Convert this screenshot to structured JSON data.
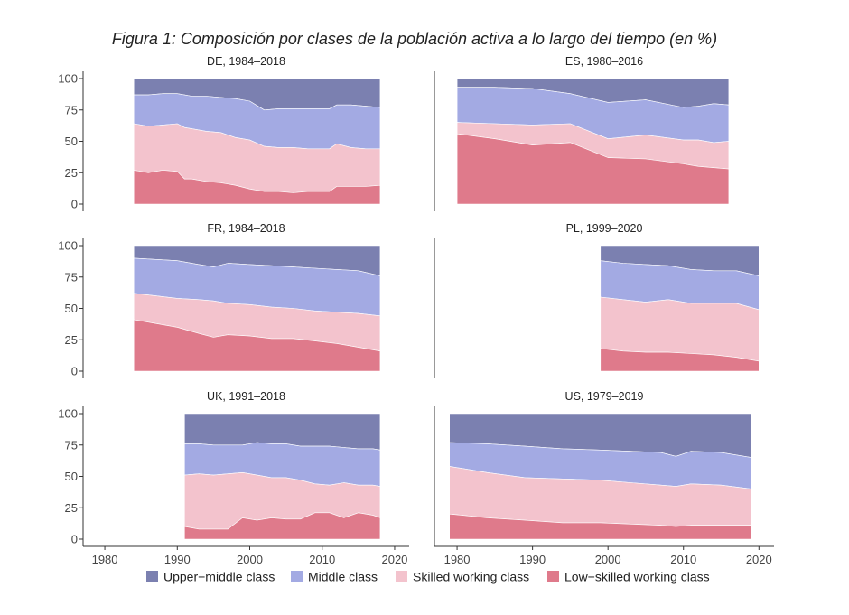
{
  "chart_data": {
    "type": "area",
    "stacked": true,
    "title": "Figura 1: Composición por clases de la población activa a lo largo del tiempo (en %)",
    "xlim": [
      1977,
      2022
    ],
    "ylim": [
      0,
      100
    ],
    "xticks": [
      1980,
      1990,
      2000,
      2010,
      2020
    ],
    "yticks": [
      0,
      25,
      50,
      75,
      100
    ],
    "legend_position": "bottom",
    "colors": {
      "upper_middle": "#7b80b0",
      "middle": "#a3aae3",
      "skilled": "#f3c3cd",
      "low": "#df7a8b"
    },
    "legend": [
      {
        "key": "upper_middle",
        "label": "Upper−middle class"
      },
      {
        "key": "middle",
        "label": "Middle class"
      },
      {
        "key": "skilled",
        "label": "Skilled working class"
      },
      {
        "key": "low",
        "label": "Low−skilled working class"
      }
    ],
    "panels": [
      {
        "title": "DE, 1984–2018",
        "years": [
          1984,
          1986,
          1988,
          1990,
          1991,
          1992,
          1994,
          1996,
          1998,
          2000,
          2002,
          2004,
          2006,
          2008,
          2010,
          2011,
          2012,
          2014,
          2016,
          2018
        ],
        "low": [
          27,
          25,
          27,
          26,
          20,
          20,
          18,
          17,
          15,
          12,
          10,
          10,
          9,
          10,
          10,
          10,
          14,
          14,
          14,
          15
        ],
        "skilled_cum": [
          64,
          62,
          63,
          64,
          61,
          60,
          58,
          57,
          53,
          51,
          46,
          45,
          45,
          44,
          44,
          44,
          48,
          45,
          44,
          44
        ],
        "middle_cum": [
          87,
          87,
          88,
          88,
          87,
          86,
          86,
          85,
          84,
          82,
          75,
          76,
          76,
          76,
          76,
          76,
          79,
          79,
          78,
          77
        ]
      },
      {
        "title": "ES, 1980–2016",
        "years": [
          1980,
          1985,
          1990,
          1995,
          2000,
          2005,
          2010,
          2012,
          2014,
          2016
        ],
        "low": [
          56,
          52,
          47,
          49,
          37,
          36,
          32,
          30,
          29,
          28
        ],
        "skilled_cum": [
          65,
          64,
          63,
          64,
          52,
          55,
          51,
          51,
          49,
          50
        ],
        "middle_cum": [
          93,
          93,
          92,
          88,
          81,
          83,
          77,
          78,
          80,
          79
        ]
      },
      {
        "title": "FR, 1984–2018",
        "years": [
          1984,
          1987,
          1990,
          1993,
          1995,
          1997,
          2000,
          2003,
          2006,
          2009,
          2012,
          2015,
          2018
        ],
        "low": [
          41,
          38,
          35,
          30,
          27,
          29,
          28,
          26,
          26,
          24,
          22,
          19,
          16
        ],
        "skilled_cum": [
          62,
          60,
          58,
          57,
          56,
          54,
          53,
          51,
          50,
          48,
          47,
          46,
          44
        ],
        "middle_cum": [
          90,
          89,
          88,
          85,
          83,
          86,
          85,
          84,
          83,
          82,
          81,
          80,
          76
        ]
      },
      {
        "title": "PL, 1999–2020",
        "years": [
          1999,
          2002,
          2005,
          2008,
          2011,
          2014,
          2017,
          2020
        ],
        "low": [
          18,
          16,
          15,
          15,
          14,
          13,
          11,
          8
        ],
        "skilled_cum": [
          59,
          57,
          55,
          57,
          54,
          54,
          54,
          49
        ],
        "middle_cum": [
          88,
          86,
          85,
          84,
          81,
          80,
          80,
          76
        ]
      },
      {
        "title": "UK, 1991–2018",
        "years": [
          1991,
          1993,
          1995,
          1997,
          1999,
          2001,
          2003,
          2005,
          2007,
          2009,
          2011,
          2013,
          2015,
          2017,
          2018
        ],
        "low": [
          10,
          8,
          8,
          8,
          17,
          15,
          17,
          16,
          16,
          21,
          21,
          17,
          21,
          19,
          17
        ],
        "skilled_cum": [
          51,
          52,
          51,
          52,
          53,
          51,
          49,
          49,
          47,
          44,
          43,
          45,
          43,
          43,
          42
        ],
        "middle_cum": [
          76,
          76,
          75,
          75,
          75,
          77,
          76,
          76,
          74,
          74,
          74,
          73,
          72,
          72,
          71
        ]
      },
      {
        "title": "US, 1979–2019",
        "years": [
          1979,
          1984,
          1989,
          1994,
          1999,
          2003,
          2007,
          2009,
          2011,
          2015,
          2019
        ],
        "low": [
          20,
          17,
          15,
          13,
          13,
          12,
          11,
          10,
          11,
          11,
          11
        ],
        "skilled_cum": [
          58,
          53,
          49,
          48,
          47,
          45,
          43,
          42,
          44,
          43,
          40
        ],
        "middle_cum": [
          77,
          76,
          74,
          72,
          71,
          70,
          69,
          66,
          70,
          69,
          65
        ]
      }
    ]
  }
}
